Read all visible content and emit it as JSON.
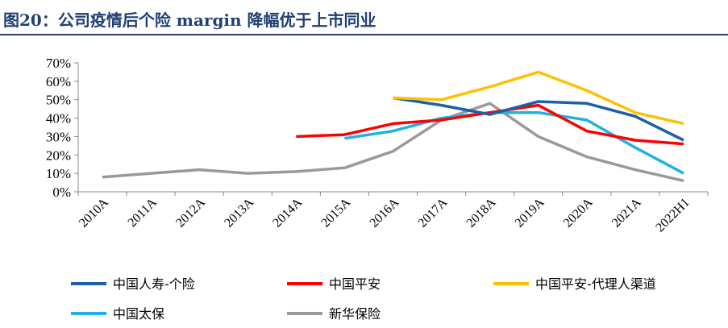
{
  "header": {
    "title": "图20：公司疫情后个险 margin 降幅优于上市同业"
  },
  "chart_data": {
    "type": "line",
    "categories": [
      "2010A",
      "2011A",
      "2012A",
      "2013A",
      "2014A",
      "2015A",
      "2016A",
      "2017A",
      "2018A",
      "2019A",
      "2020A",
      "2021A",
      "2022H1"
    ],
    "y_ticks": [
      "0%",
      "10%",
      "20%",
      "30%",
      "40%",
      "50%",
      "60%",
      "70%"
    ],
    "ylim": [
      0,
      70
    ],
    "grid": false,
    "legend_placement": "bottom",
    "series": [
      {
        "name": "中国人寿-个险",
        "color": "#1f5fa8",
        "values": [
          null,
          null,
          null,
          null,
          null,
          null,
          51,
          47,
          42,
          49,
          48,
          41,
          28
        ]
      },
      {
        "name": "中国平安",
        "color": "#ff0000",
        "values": [
          null,
          null,
          null,
          null,
          30,
          31,
          37,
          39,
          43,
          47,
          33,
          28,
          26
        ]
      },
      {
        "name": "中国平安-代理人渠道",
        "color": "#ffc000",
        "values": [
          null,
          null,
          null,
          null,
          null,
          null,
          51,
          50,
          57,
          65,
          55,
          43,
          37
        ]
      },
      {
        "name": "中国太保",
        "color": "#1fb0ea",
        "values": [
          null,
          null,
          null,
          null,
          null,
          29,
          33,
          40,
          43,
          43,
          39,
          24,
          10
        ]
      },
      {
        "name": "新华保险",
        "color": "#999999",
        "values": [
          8,
          10,
          12,
          10,
          11,
          13,
          22,
          39,
          48,
          30,
          19,
          12,
          6
        ]
      }
    ]
  }
}
